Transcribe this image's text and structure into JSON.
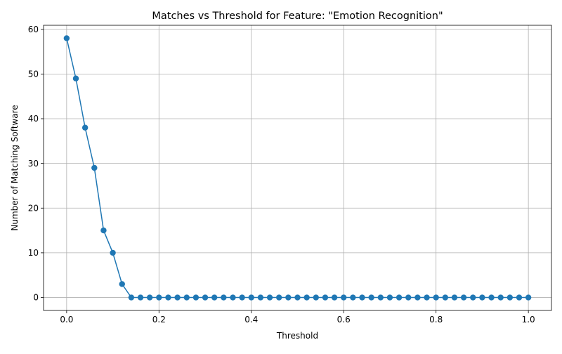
{
  "chart_data": {
    "type": "line",
    "title": "Matches vs Threshold for Feature: \"Emotion Recognition\"",
    "xlabel": "Threshold",
    "ylabel": "Number of Matching Software",
    "xlim": [
      -0.05,
      1.05
    ],
    "ylim": [
      -2.9,
      60.9
    ],
    "xticks": [
      0.0,
      0.2,
      0.4,
      0.6,
      0.8,
      1.0
    ],
    "xtick_labels": [
      "0.0",
      "0.2",
      "0.4",
      "0.6",
      "0.8",
      "1.0"
    ],
    "yticks": [
      0,
      10,
      20,
      30,
      40,
      50,
      60
    ],
    "ytick_labels": [
      "0",
      "10",
      "20",
      "30",
      "40",
      "50",
      "60"
    ],
    "grid": true,
    "color": "#1f77b4",
    "marker": "circle",
    "series": [
      {
        "x": [
          0.0,
          0.02,
          0.04,
          0.06,
          0.08,
          0.1,
          0.12,
          0.14,
          0.16,
          0.18,
          0.2,
          0.22,
          0.24,
          0.26,
          0.28,
          0.3,
          0.32,
          0.34,
          0.36,
          0.38,
          0.4,
          0.42,
          0.44,
          0.46,
          0.48,
          0.5,
          0.52,
          0.54,
          0.56,
          0.58,
          0.6,
          0.62,
          0.64,
          0.66,
          0.68,
          0.7,
          0.72,
          0.74,
          0.76,
          0.78,
          0.8,
          0.82,
          0.84,
          0.86,
          0.88,
          0.9,
          0.92,
          0.94,
          0.96,
          0.98,
          1.0
        ],
        "y": [
          58,
          49,
          38,
          29,
          15,
          10,
          3,
          0,
          0,
          0,
          0,
          0,
          0,
          0,
          0,
          0,
          0,
          0,
          0,
          0,
          0,
          0,
          0,
          0,
          0,
          0,
          0,
          0,
          0,
          0,
          0,
          0,
          0,
          0,
          0,
          0,
          0,
          0,
          0,
          0,
          0,
          0,
          0,
          0,
          0,
          0,
          0,
          0,
          0,
          0,
          0
        ]
      }
    ]
  }
}
